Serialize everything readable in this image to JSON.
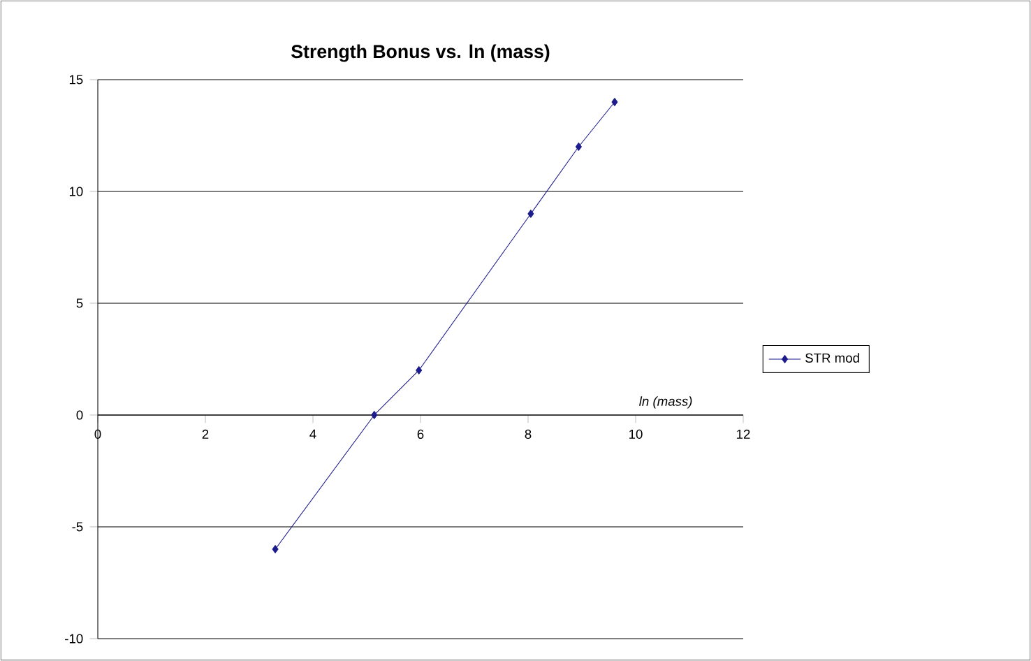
{
  "chart_data": {
    "type": "line",
    "title": "Strength Bonus vs. ln (mass)",
    "xlabel": "ln (mass)",
    "series": [
      {
        "name": "STR mod",
        "color": "#1c1c8c",
        "x": [
          3.3,
          5.14,
          5.97,
          8.05,
          8.94,
          9.61
        ],
        "values": [
          -6,
          0,
          2,
          9,
          12,
          14
        ]
      }
    ],
    "xlim": [
      0,
      12
    ],
    "ylim": [
      -10,
      15
    ],
    "xticks": [
      0,
      2,
      4,
      6,
      8,
      10,
      12
    ],
    "yticks": [
      -10,
      -5,
      0,
      5,
      10,
      15
    ],
    "grid": "y",
    "legend": "right",
    "marker": "diamond",
    "line_style": "solid"
  }
}
